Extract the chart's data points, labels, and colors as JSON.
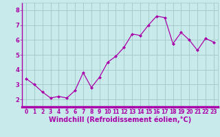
{
  "x": [
    0,
    1,
    2,
    3,
    4,
    5,
    6,
    7,
    8,
    9,
    10,
    11,
    12,
    13,
    14,
    15,
    16,
    17,
    18,
    19,
    20,
    21,
    22,
    23
  ],
  "y": [
    3.4,
    3.0,
    2.5,
    2.1,
    2.2,
    2.1,
    2.6,
    3.8,
    2.8,
    3.5,
    4.5,
    4.9,
    5.5,
    6.4,
    6.3,
    7.0,
    7.6,
    7.5,
    5.75,
    6.5,
    6.0,
    5.3,
    6.1,
    5.85
  ],
  "line_color": "#aa00aa",
  "marker": "D",
  "marker_size": 2.0,
  "bg_color": "#c8eaea",
  "grid_color": "#a0c8c8",
  "xlabel": "Windchill (Refroidissement éolien,°C)",
  "ylim": [
    1.5,
    8.5
  ],
  "xlim": [
    -0.5,
    23.5
  ],
  "yticks": [
    2,
    3,
    4,
    5,
    6,
    7,
    8
  ],
  "xticks": [
    0,
    1,
    2,
    3,
    4,
    5,
    6,
    7,
    8,
    9,
    10,
    11,
    12,
    13,
    14,
    15,
    16,
    17,
    18,
    19,
    20,
    21,
    22,
    23
  ],
  "font_color": "#aa00aa",
  "label_fontsize": 7.0,
  "tick_fontsize": 5.5,
  "axis_linewidth": 1.5,
  "bottom_spine_color": "#aa00aa"
}
